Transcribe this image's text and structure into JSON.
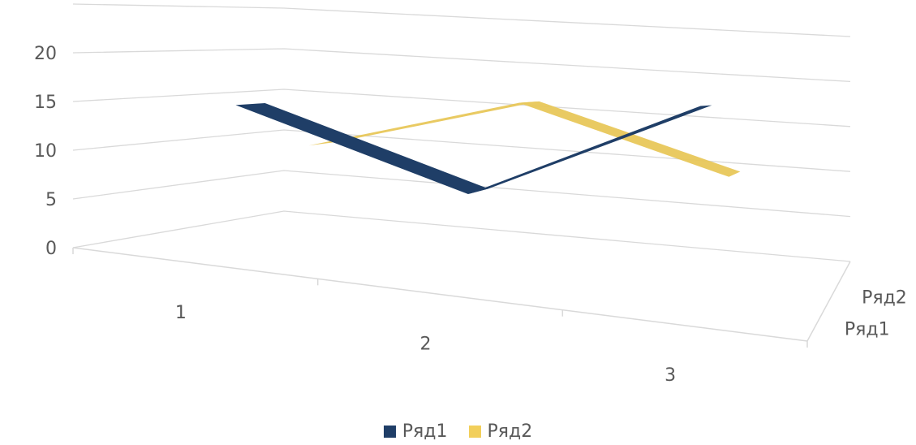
{
  "chart_data": {
    "type": "line",
    "categories": [
      "1",
      "2",
      "3"
    ],
    "y_ticks": [
      "0",
      "5",
      "10",
      "15",
      "20"
    ],
    "depth_labels": [
      "Ряд1",
      "Ряд2"
    ],
    "ylim": [
      0,
      25
    ],
    "grid": true,
    "legend_position": "bottom",
    "series": [
      {
        "name": "Ряд1",
        "values": [
          15,
          8,
          17
        ],
        "color": "#1f3e67"
      },
      {
        "name": "Ряд2",
        "values": [
          10,
          16,
          10
        ],
        "color": "#e8c75a"
      }
    ]
  },
  "legend": {
    "items": [
      {
        "label": "Ряд1",
        "color": "#1f3e67"
      },
      {
        "label": "Ряд2",
        "color": "#f2cf5b"
      }
    ]
  }
}
